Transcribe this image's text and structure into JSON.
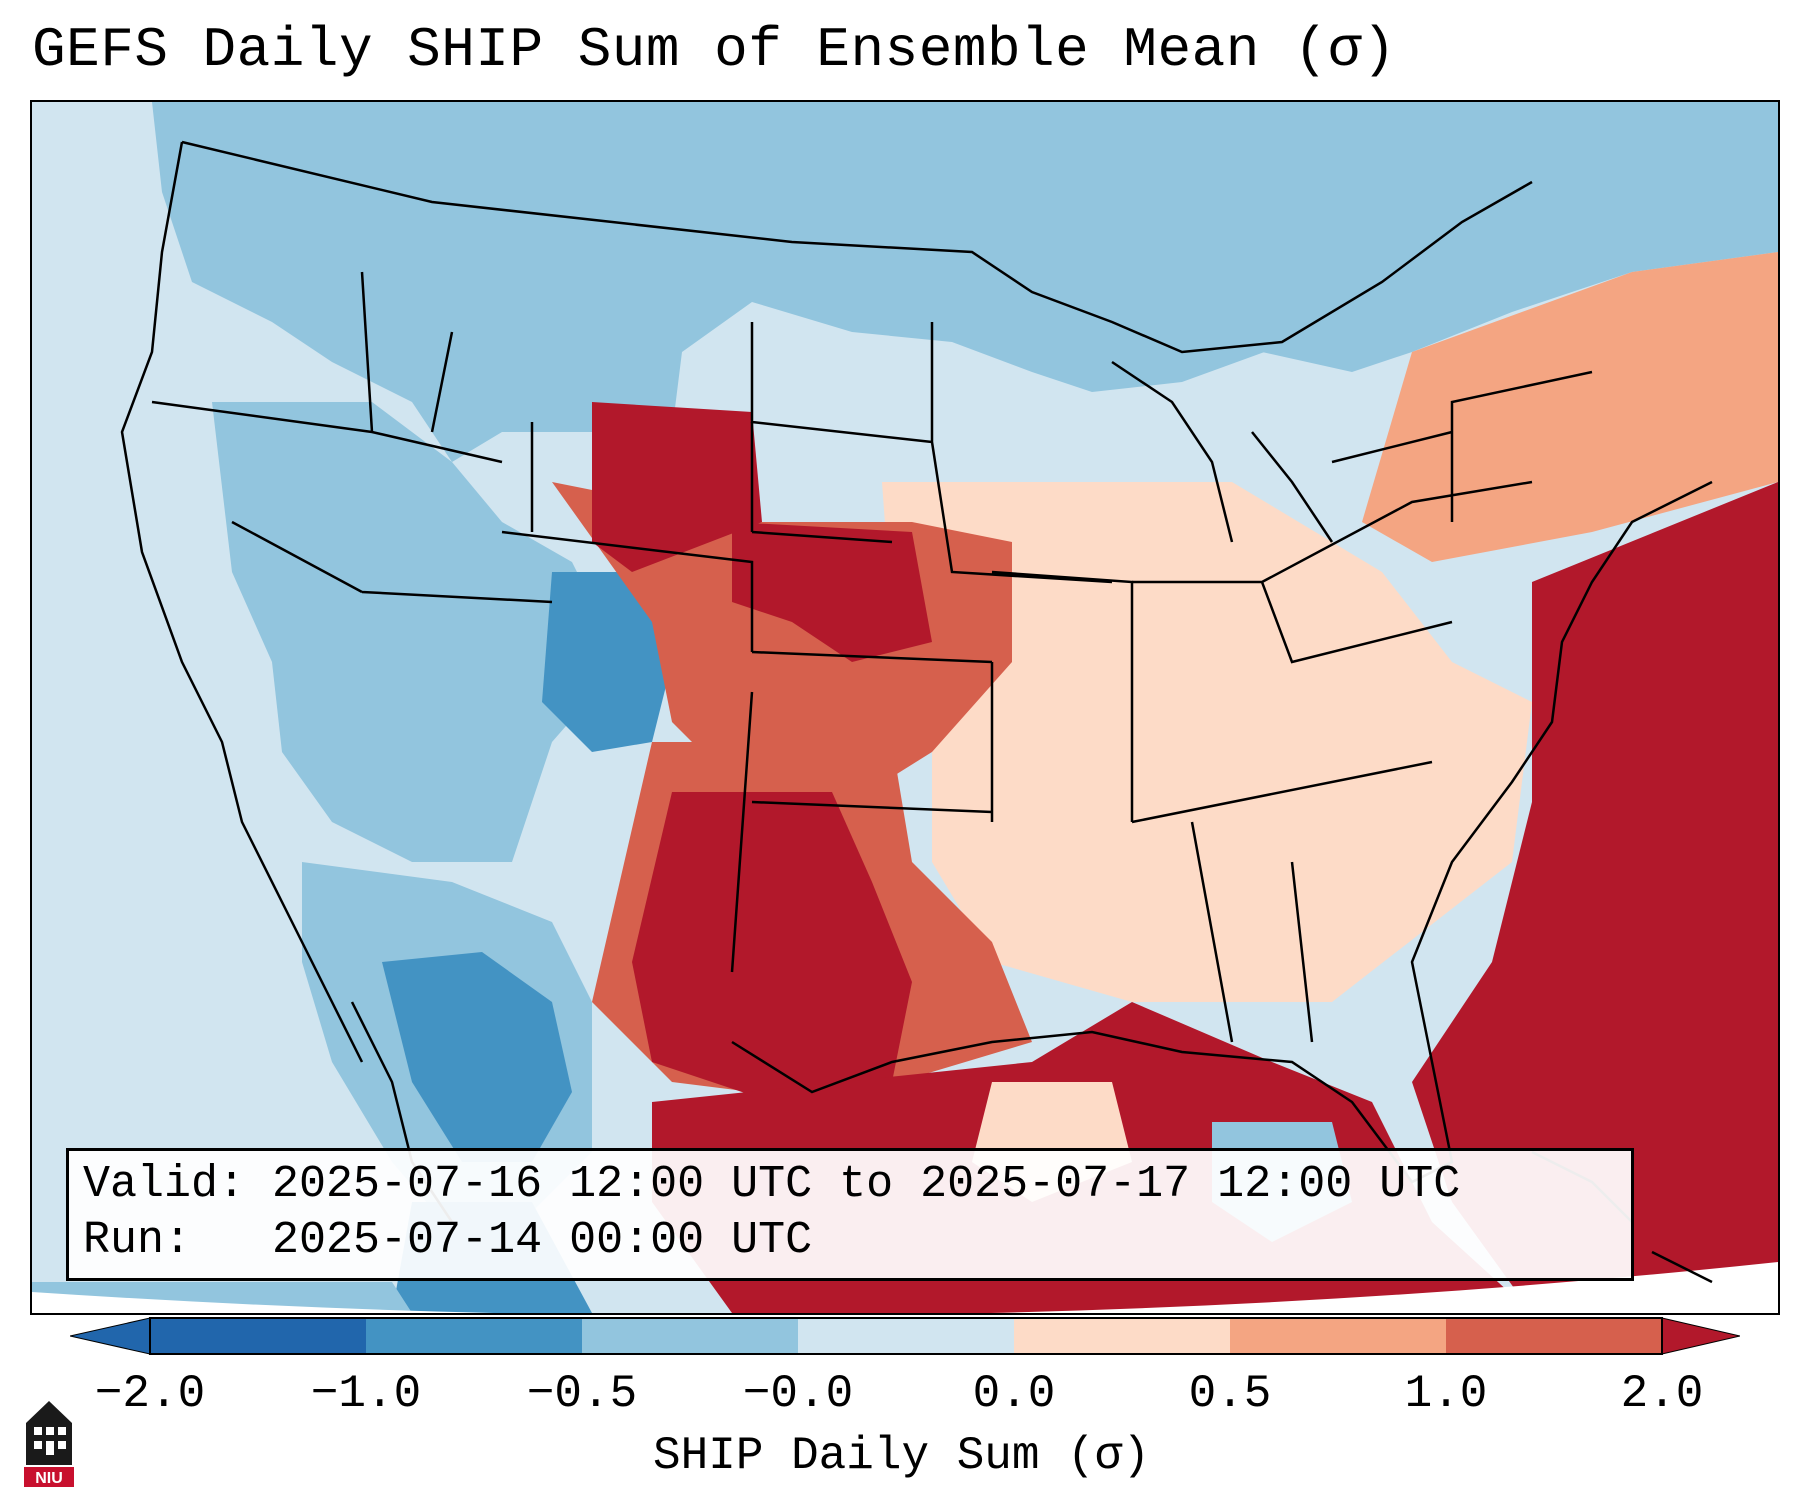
{
  "title": "GEFS Daily SHIP Sum of Ensemble Mean (σ)",
  "info": {
    "valid": "Valid: 2025-07-16 12:00 UTC to 2025-07-17 12:00 UTC",
    "run": "Run:   2025-07-14 00:00 UTC"
  },
  "colorbar": {
    "label": "SHIP Daily Sum (σ)",
    "ticks": [
      "−2.0",
      "−1.0",
      "−0.5",
      "−0.0",
      "0.0",
      "0.5",
      "1.0",
      "2.0"
    ],
    "colors": [
      "#2166ac",
      "#4393c3",
      "#92c5de",
      "#d1e5f0",
      "#ffffff",
      "#fddbc7",
      "#f4a582",
      "#d6604d",
      "#b2182b"
    ]
  },
  "map": {
    "region": "Contiguous United States and surroundings",
    "colors": {
      "very_low": "#4393c3",
      "low": "#92c5de",
      "slightly_low": "#d1e5f0",
      "slightly_high": "#fddbc7",
      "high": "#f4a582",
      "higher": "#d6604d",
      "very_high": "#b2182b",
      "ocean_white": "#ffffff"
    }
  },
  "logo": {
    "text": "NIU",
    "icon": "niu-castle-logo-icon"
  }
}
